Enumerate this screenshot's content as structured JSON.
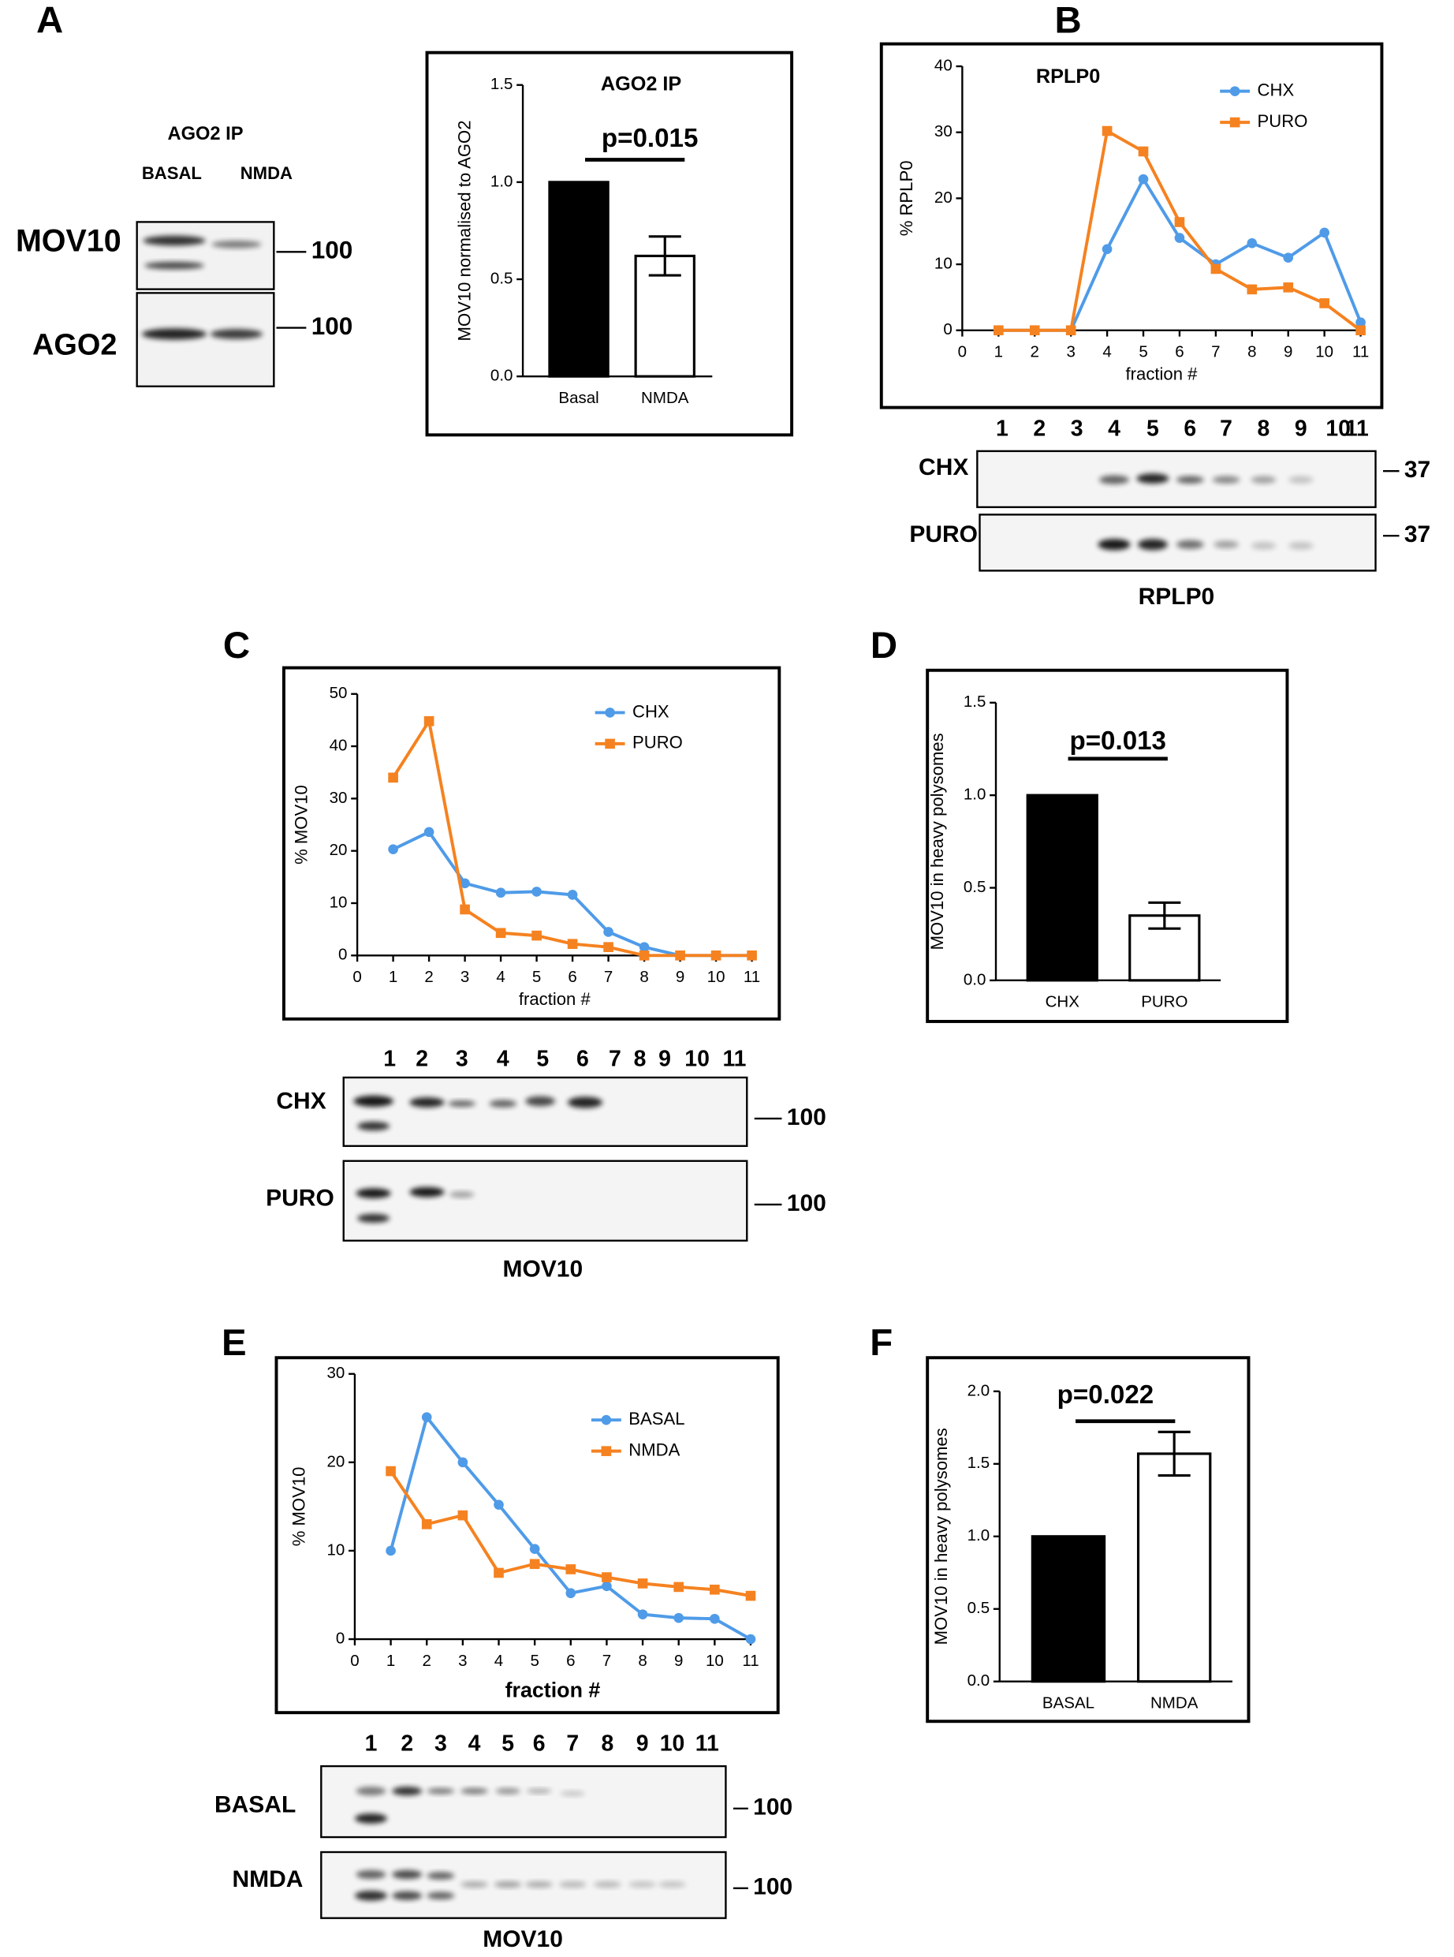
{
  "panels": [
    "A",
    "B",
    "C",
    "D",
    "E",
    "F"
  ],
  "chart_data": [
    {
      "type": "bar",
      "title": "AGO2 IP",
      "ylabel": "MOV10 normalised to AGO2",
      "categories": [
        "Basal",
        "NMDA"
      ],
      "values": [
        1.0,
        0.62
      ],
      "errors": [
        null,
        0.1
      ],
      "colors": [
        "#000000",
        "#ffffff"
      ],
      "ylim": [
        0,
        1.5
      ],
      "yticks": [
        {
          "value": 0,
          "label": "0.0"
        },
        0.5,
        {
          "value": 1,
          "label": "1.0"
        },
        1.5
      ],
      "annotation": "p=0.015"
    },
    {
      "type": "line",
      "title": "RPLP0",
      "xlabel": "fraction #",
      "ylabel": "% RPLP0",
      "x": [
        1,
        2,
        3,
        4,
        5,
        6,
        7,
        8,
        9,
        10,
        11
      ],
      "series": [
        {
          "name": "CHX",
          "color": "#4f9be8",
          "values": [
            0,
            0,
            0,
            12.3,
            22.9,
            14,
            10,
            13.2,
            11,
            14.8,
            1.2
          ]
        },
        {
          "name": "PURO",
          "color": "#f58220",
          "values": [
            0,
            0,
            0,
            30.2,
            27.1,
            16.4,
            9.3,
            6.2,
            6.5,
            4.1,
            0
          ]
        }
      ],
      "xlim": [
        0,
        11
      ],
      "xticks": [
        0,
        1,
        2,
        3,
        4,
        5,
        6,
        7,
        8,
        9,
        10,
        11
      ],
      "ylim": [
        0,
        40
      ],
      "yticks": [
        0,
        10,
        20,
        30,
        40
      ]
    },
    {
      "type": "line",
      "xlabel": "fraction #",
      "ylabel": "% MOV10",
      "x": [
        1,
        2,
        3,
        4,
        5,
        6,
        7,
        8,
        9,
        10,
        11
      ],
      "series": [
        {
          "name": "CHX",
          "color": "#4f9be8",
          "values": [
            20.3,
            23.6,
            13.8,
            12,
            12.2,
            11.6,
            4.5,
            1.6,
            0,
            0,
            0
          ]
        },
        {
          "name": "PURO",
          "color": "#f58220",
          "values": [
            34,
            44.8,
            8.8,
            4.3,
            3.8,
            2.2,
            1.6,
            0,
            0,
            0,
            0
          ]
        }
      ],
      "xlim": [
        0,
        11
      ],
      "xticks": [
        0,
        1,
        2,
        3,
        4,
        5,
        6,
        7,
        8,
        9,
        10,
        11
      ],
      "ylim": [
        0,
        50
      ],
      "yticks": [
        0,
        10,
        20,
        30,
        40,
        50
      ]
    },
    {
      "type": "bar",
      "ylabel": "MOV10 in heavy polysomes",
      "categories": [
        "CHX",
        "PURO"
      ],
      "values": [
        1.0,
        0.35
      ],
      "errors": [
        null,
        0.07
      ],
      "colors": [
        "#000000",
        "#ffffff"
      ],
      "ylim": [
        0,
        1.5
      ],
      "yticks": [
        {
          "value": 0,
          "label": "0.0"
        },
        0.5,
        {
          "value": 1,
          "label": "1.0"
        },
        1.5
      ],
      "annotation": "p=0.013"
    },
    {
      "type": "line",
      "xlabel": "fraction #",
      "ylabel": "% MOV10",
      "x": [
        1,
        2,
        3,
        4,
        5,
        6,
        7,
        8,
        9,
        10,
        11
      ],
      "series": [
        {
          "name": "BASAL",
          "color": "#4f9be8",
          "values": [
            10,
            25.1,
            20,
            15.2,
            10.2,
            5.2,
            6,
            2.8,
            2.4,
            2.3,
            0
          ]
        },
        {
          "name": "NMDA",
          "color": "#f58220",
          "values": [
            19,
            13,
            14,
            7.5,
            8.5,
            7.9,
            7,
            6.3,
            5.9,
            5.6,
            4.9
          ]
        }
      ],
      "xlim": [
        0,
        11
      ],
      "xticks": [
        0,
        1,
        2,
        3,
        4,
        5,
        6,
        7,
        8,
        9,
        10,
        11
      ],
      "ylim": [
        0,
        30
      ],
      "yticks": [
        0,
        10,
        20,
        30
      ]
    },
    {
      "type": "bar",
      "ylabel": "MOV10 in heavy polysomes",
      "categories": [
        "BASAL",
        "NMDA"
      ],
      "values": [
        1.0,
        1.57
      ],
      "errors": [
        null,
        0.15
      ],
      "colors": [
        "#000000",
        "#ffffff"
      ],
      "ylim": [
        0,
        2
      ],
      "yticks": [
        {
          "value": 0,
          "label": "0.0"
        },
        0.5,
        {
          "value": 1,
          "label": "1.0"
        },
        1.5,
        {
          "value": 2,
          "label": "2.0"
        }
      ],
      "annotation": "p=0.022"
    }
  ],
  "blots": [
    {
      "title": "AGO2 IP",
      "lanes": [
        "BASAL",
        "NMDA"
      ],
      "rows": [
        {
          "label": "MOV10",
          "marker": 100
        },
        {
          "label": "AGO2",
          "marker": 100
        }
      ]
    },
    {
      "lanes": [
        1,
        2,
        3,
        4,
        5,
        6,
        7,
        8,
        9,
        10,
        11
      ],
      "rows": [
        {
          "label": "CHX",
          "marker": 37
        },
        {
          "label": "PURO",
          "marker": 37
        }
      ],
      "caption": "RPLP0"
    },
    {
      "lanes": [
        1,
        2,
        3,
        4,
        5,
        6,
        7,
        8,
        9,
        10,
        11
      ],
      "rows": [
        {
          "label": "CHX",
          "marker": 100
        },
        {
          "label": "PURO",
          "marker": 100
        }
      ],
      "caption": "MOV10"
    },
    {
      "lanes": [
        1,
        2,
        3,
        4,
        5,
        6,
        7,
        8,
        9,
        10,
        11
      ],
      "rows": [
        {
          "label": "BASAL",
          "marker": 100
        },
        {
          "label": "NMDA",
          "marker": 100
        }
      ],
      "caption": "MOV10"
    }
  ]
}
